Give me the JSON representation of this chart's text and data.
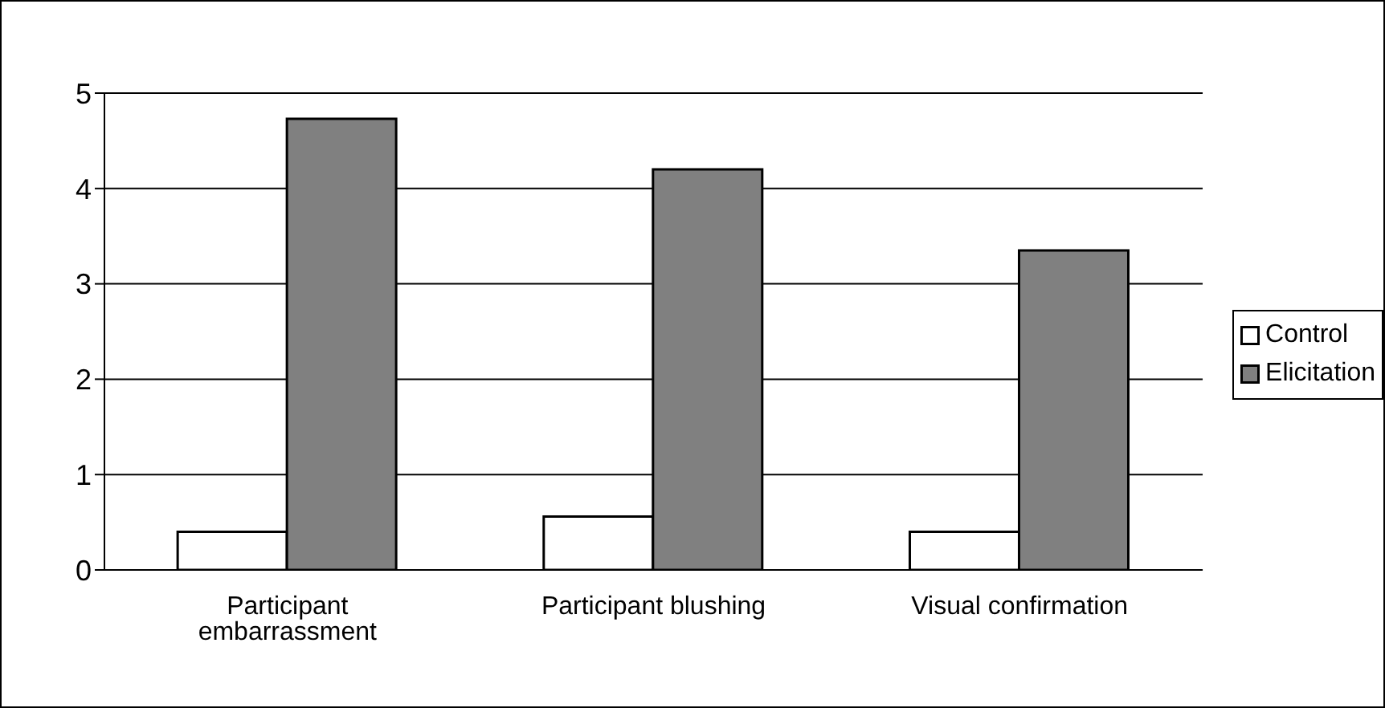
{
  "chart_data": {
    "type": "bar",
    "categories": [
      "Participant embarrassment",
      "Participant blushing",
      "Visual confirmation"
    ],
    "series": [
      {
        "name": "Control",
        "color": "#ffffff",
        "values": [
          0.4,
          0.56,
          0.4
        ]
      },
      {
        "name": "Elicitation",
        "color": "#808080",
        "values": [
          4.73,
          4.2,
          3.35
        ]
      }
    ],
    "ylim": [
      0,
      5
    ],
    "yticks": [
      0,
      1,
      2,
      3,
      4,
      5
    ],
    "grid": "y",
    "legend": "right"
  }
}
